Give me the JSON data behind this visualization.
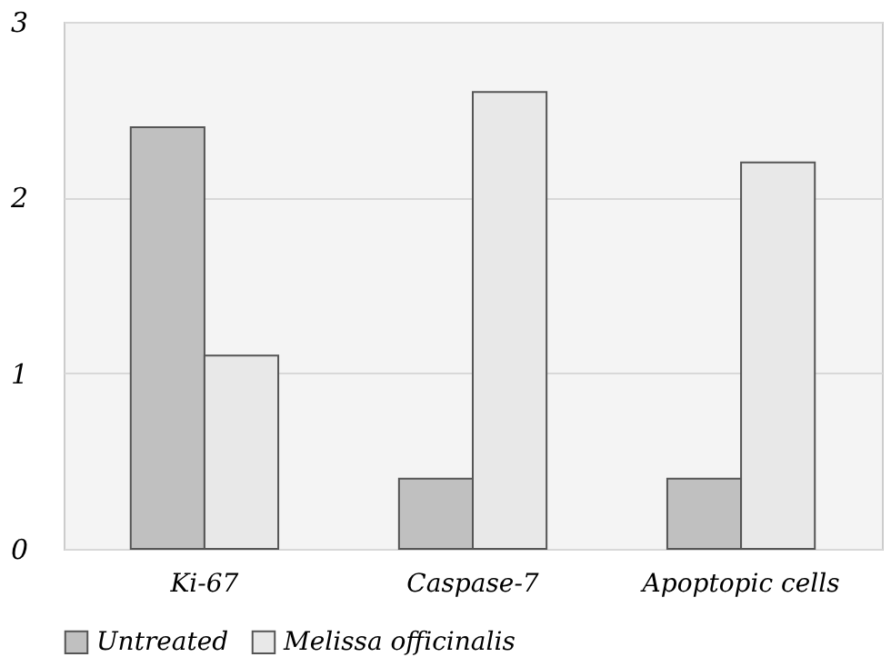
{
  "chart_data": {
    "type": "bar",
    "categories": [
      "Ki-67",
      "Caspase-7",
      "Apoptopic cells"
    ],
    "series": [
      {
        "name": "Untreated",
        "color": "#c0c0c0",
        "values": [
          2.4,
          0.4,
          0.4
        ]
      },
      {
        "name": "Melissa officinalis",
        "color": "#e8e8e8",
        "values": [
          1.1,
          2.6,
          2.2
        ]
      }
    ],
    "ylim": [
      0,
      3
    ],
    "yticks": [
      0,
      1,
      2,
      3
    ],
    "grid": "y",
    "legend": "bottom"
  }
}
